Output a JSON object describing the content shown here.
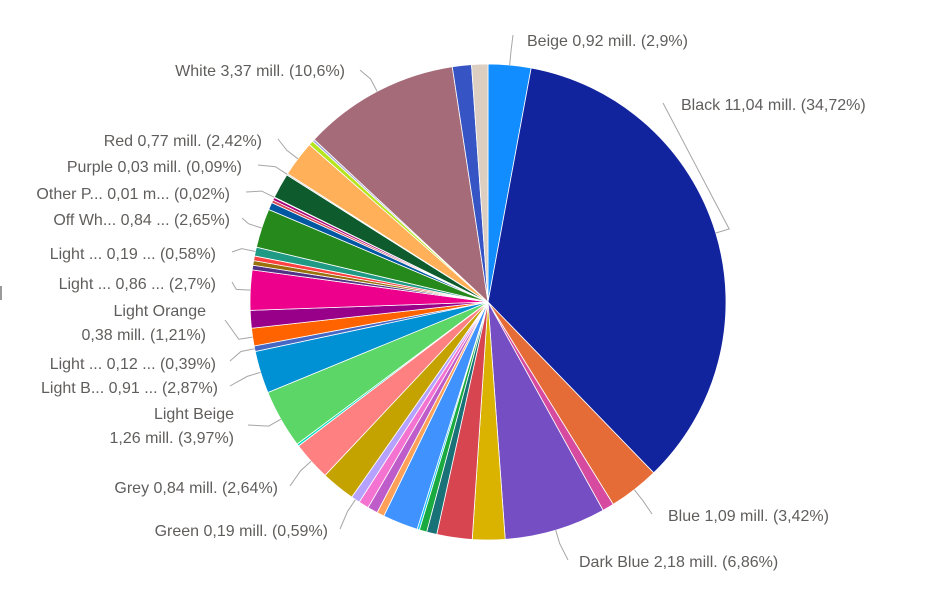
{
  "chart_data": {
    "type": "pie",
    "title": "",
    "slices": [
      {
        "name": "Beige",
        "value": 0.92,
        "pct": 2.9,
        "color": "#118DFF",
        "label": [
          "Beige 0,92 mill. (2,9%)"
        ]
      },
      {
        "name": "Black",
        "value": 11.04,
        "pct": 34.72,
        "color": "#12239E",
        "label": [
          "Black 11,04 mill. (34,72%)"
        ]
      },
      {
        "name": "Blue",
        "value": 1.09,
        "pct": 3.42,
        "color": "#E66C37",
        "label": [
          "Blue 1,09 mill. (3,42%)"
        ]
      },
      {
        "name": "",
        "value": 0.25,
        "pct": 0.8,
        "color": "#D64BA0",
        "label": []
      },
      {
        "name": "Dark Blue",
        "value": 2.18,
        "pct": 6.86,
        "color": "#744EC2",
        "label": [
          "Dark Blue 2,18 mill. (6,86%)"
        ]
      },
      {
        "name": "",
        "value": 0.7,
        "pct": 2.2,
        "color": "#D9B300",
        "label": []
      },
      {
        "name": "",
        "value": 0.76,
        "pct": 2.4,
        "color": "#D64550",
        "label": []
      },
      {
        "name": "",
        "value": 0.22,
        "pct": 0.7,
        "color": "#197278",
        "label": []
      },
      {
        "name": "",
        "value": 0.16,
        "pct": 0.5,
        "color": "#1AAB40",
        "label": []
      },
      {
        "name": "",
        "value": 0.05,
        "pct": 0.15,
        "color": "#15C6F4",
        "label": []
      },
      {
        "name": "",
        "value": 0.76,
        "pct": 2.4,
        "color": "#4092FF",
        "label": []
      },
      {
        "name": "",
        "value": 0.16,
        "pct": 0.5,
        "color": "#FFA058",
        "label": []
      },
      {
        "name": "",
        "value": 0.22,
        "pct": 0.7,
        "color": "#BE5DC9",
        "label": []
      },
      {
        "name": "",
        "value": 0.22,
        "pct": 0.7,
        "color": "#F472D0",
        "label": []
      },
      {
        "name": "Green",
        "value": 0.19,
        "pct": 0.59,
        "color": "#B5A1FF",
        "label": [
          "Green 0,19 mill. (0,59%)"
        ]
      },
      {
        "name": "",
        "value": 0.73,
        "pct": 2.3,
        "color": "#C4A200",
        "label": []
      },
      {
        "name": "Grey",
        "value": 0.84,
        "pct": 2.64,
        "color": "#FF8080",
        "label": [
          "Grey 0,84 mill. (2,64%)"
        ]
      },
      {
        "name": "",
        "value": 0.05,
        "pct": 0.15,
        "color": "#00DBBC",
        "label": []
      },
      {
        "name": "Light Beige",
        "value": 1.26,
        "pct": 3.97,
        "color": "#5BD667",
        "label": [
          "Light Beige",
          "1,26 mill. (3,97%)"
        ]
      },
      {
        "name": "Light B...",
        "value": 0.91,
        "pct": 2.87,
        "color": "#0091D5",
        "label": [
          "Light B... 0,91 ... (2,87%)"
        ]
      },
      {
        "name": "Light ...",
        "value": 0.12,
        "pct": 0.39,
        "color": "#4668C5",
        "label": [
          "Light ... 0,12 ... (0,39%)"
        ]
      },
      {
        "name": "Light Orange",
        "value": 0.38,
        "pct": 1.21,
        "color": "#FF6300",
        "label": [
          "Light Orange",
          "0,38 mill. (1,21%)"
        ]
      },
      {
        "name": "",
        "value": 0.38,
        "pct": 1.2,
        "color": "#99008A",
        "label": []
      },
      {
        "name": "Light ...",
        "value": 0.86,
        "pct": 2.7,
        "color": "#EC008C",
        "label": [
          "Light ... 0,86 ... (2,7%)"
        ]
      },
      {
        "name": "",
        "value": 0.1,
        "pct": 0.3,
        "color": "#533285",
        "label": []
      },
      {
        "name": "",
        "value": 0.1,
        "pct": 0.3,
        "color": "#99700A",
        "label": []
      },
      {
        "name": "",
        "value": 0.1,
        "pct": 0.3,
        "color": "#FF4141",
        "label": []
      },
      {
        "name": "Light ...",
        "value": 0.19,
        "pct": 0.58,
        "color": "#1F9A85",
        "label": [
          "Light ... 0,19 ... (0,58%)"
        ]
      },
      {
        "name": "Off Wh...",
        "value": 0.84,
        "pct": 2.65,
        "color": "#25891C",
        "label": [
          "Off Wh... 0,84 ... (2,65%)"
        ]
      },
      {
        "name": "",
        "value": 0.16,
        "pct": 0.5,
        "color": "#0057A2",
        "label": []
      },
      {
        "name": "",
        "value": 0.06,
        "pct": 0.2,
        "color": "#D64550",
        "label": []
      },
      {
        "name": "",
        "value": 0.06,
        "pct": 0.2,
        "color": "#A5007A",
        "label": []
      },
      {
        "name": "Other P...",
        "value": 0.01,
        "pct": 0.02,
        "color": "#6B007B",
        "label": [
          "Other P... 0,01 m... (0,02%)"
        ]
      },
      {
        "name": "",
        "value": 0.54,
        "pct": 1.7,
        "color": "#0E5B2E",
        "label": []
      },
      {
        "name": "Purple",
        "value": 0.03,
        "pct": 0.09,
        "color": "#C7C7C7",
        "label": [
          "Purple 0,03 mill. (0,09%)"
        ]
      },
      {
        "name": "Red",
        "value": 0.77,
        "pct": 2.42,
        "color": "#FFB058",
        "label": [
          "Red 0,77 mill. (2,42%)"
        ]
      },
      {
        "name": "",
        "value": 0.1,
        "pct": 0.3,
        "color": "#B5E61D",
        "label": []
      },
      {
        "name": "",
        "value": 0.05,
        "pct": 0.15,
        "color": "#A7A7DD",
        "label": []
      },
      {
        "name": "White",
        "value": 3.37,
        "pct": 10.6,
        "color": "#A66B79",
        "label": [
          "White 3,37 mill. (10,6%)"
        ]
      },
      {
        "name": "",
        "value": 0.41,
        "pct": 1.3,
        "color": "#3654C4",
        "label": []
      },
      {
        "name": "",
        "value": 0.35,
        "pct": 1.1,
        "color": "#DCCFC2",
        "label": []
      }
    ]
  }
}
